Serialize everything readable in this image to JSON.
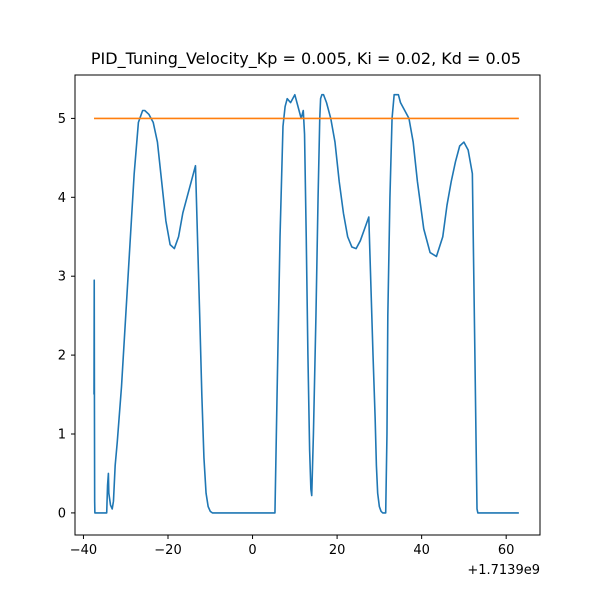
{
  "chart_data": {
    "type": "line",
    "title": "PID_Tuning_Velocity_Kp = 0.005, Ki = 0.02, Kd = 0.05",
    "xlabel": "",
    "ylabel": "",
    "x_offset_label": "+1.7139e9",
    "xlim": [
      -42,
      68
    ],
    "ylim": [
      -0.28,
      5.55
    ],
    "xticks": [
      -40,
      -20,
      0,
      20,
      40,
      60
    ],
    "yticks": [
      0,
      1,
      2,
      3,
      4,
      5
    ],
    "grid": false,
    "colors": {
      "velocity": "#1f77b4",
      "setpoint": "#ff7f0e",
      "axes": "#000000"
    },
    "series": [
      {
        "role": "velocity",
        "x": [
          -37.5,
          -37.45,
          -37.4,
          -37.35,
          -37.3,
          -37.2,
          -37.0,
          -36.5,
          -35.5,
          -34.5,
          -34.3,
          -34.1,
          -34.0,
          -33.6,
          -33.2,
          -32.9,
          -32.5,
          -32.0,
          -31.0,
          -30.0,
          -29.0,
          -28.0,
          -27.0,
          -26.0,
          -25.5,
          -24.5,
          -23.5,
          -22.5,
          -21.5,
          -20.5,
          -19.5,
          -18.5,
          -17.5,
          -16.5,
          -15.5,
          -14.5,
          -13.5,
          -12.5,
          -12.0,
          -11.5,
          -11.0,
          -10.5,
          -10.0,
          -9.5,
          -9.0,
          -8.5,
          -8.0,
          -7.5,
          -7.0,
          -6.0,
          0.0,
          5.0,
          5.3,
          5.8,
          6.5,
          7.2,
          7.7,
          8.2,
          9.0,
          10.0,
          11.0,
          11.5,
          12.0,
          12.3,
          12.7,
          13.1,
          13.5,
          13.8,
          14.0,
          14.4,
          15.0,
          15.5,
          15.9,
          16.1,
          16.4,
          16.8,
          17.5,
          18.5,
          19.5,
          20.5,
          21.5,
          22.5,
          23.5,
          24.5,
          25.5,
          26.5,
          27.5,
          28.5,
          29.0,
          29.3,
          29.6,
          30.0,
          30.4,
          30.8,
          31.2,
          31.5,
          31.8,
          32.0,
          32.5,
          33.0,
          33.5,
          34.0,
          34.5,
          35.0,
          36.0,
          37.0,
          38.0,
          39.0,
          40.5,
          42.0,
          43.5,
          45.0,
          46.0,
          47.0,
          48.0,
          49.0,
          50.0,
          51.0,
          52.0,
          52.6,
          52.9,
          53.1,
          53.3,
          55.0,
          60.0,
          63.0
        ],
        "y": [
          1.5,
          2.95,
          1.3,
          0.15,
          0.0,
          0.0,
          0.0,
          0.0,
          0.0,
          0.0,
          0.35,
          0.5,
          0.25,
          0.1,
          0.05,
          0.15,
          0.6,
          0.9,
          1.6,
          2.5,
          3.4,
          4.3,
          4.95,
          5.1,
          5.1,
          5.05,
          4.95,
          4.7,
          4.2,
          3.7,
          3.4,
          3.35,
          3.5,
          3.8,
          4.0,
          4.2,
          4.4,
          2.5,
          1.5,
          0.7,
          0.25,
          0.08,
          0.02,
          0.0,
          0.0,
          0.0,
          0.0,
          0.0,
          0.0,
          0.0,
          0.0,
          0.0,
          0.0,
          1.5,
          3.5,
          4.9,
          5.15,
          5.25,
          5.2,
          5.3,
          5.1,
          5.0,
          5.1,
          4.8,
          3.5,
          2.0,
          0.8,
          0.3,
          0.22,
          1.0,
          2.5,
          4.0,
          5.0,
          5.25,
          5.3,
          5.3,
          5.2,
          5.0,
          4.7,
          4.2,
          3.8,
          3.5,
          3.37,
          3.35,
          3.45,
          3.6,
          3.75,
          2.0,
          1.2,
          0.6,
          0.25,
          0.08,
          0.02,
          0.0,
          0.0,
          0.0,
          1.0,
          2.5,
          4.0,
          5.0,
          5.3,
          5.3,
          5.3,
          5.2,
          5.1,
          5.0,
          4.7,
          4.2,
          3.6,
          3.3,
          3.25,
          3.5,
          3.9,
          4.2,
          4.45,
          4.65,
          4.7,
          4.6,
          4.3,
          2.0,
          0.8,
          0.05,
          0.0,
          0.0,
          0.0,
          0.0
        ]
      },
      {
        "role": "setpoint",
        "x": [
          -37.5,
          63.0
        ],
        "y": [
          5.0,
          5.0
        ]
      }
    ]
  }
}
